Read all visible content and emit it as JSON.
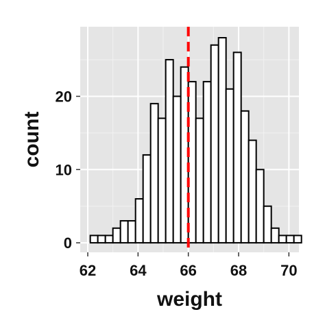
{
  "chart_data": {
    "type": "bar",
    "title": "",
    "xlabel": "weight",
    "ylabel": "count",
    "xlim": [
      61.7,
      70.4
    ],
    "ylim": [
      -1.3,
      29.5
    ],
    "x_ticks": [
      62,
      64,
      66,
      68,
      70
    ],
    "y_ticks": [
      0,
      10,
      20
    ],
    "grid": true,
    "legend": "none",
    "bin_width": 0.3,
    "bin_start": 61.8,
    "counts": [
      0,
      1,
      1,
      1,
      2,
      3,
      3,
      6,
      12,
      19,
      17,
      25,
      20,
      24,
      22,
      17,
      22,
      27,
      28,
      21,
      26,
      18,
      14,
      10,
      5,
      2,
      1,
      1,
      1,
      0
    ],
    "vline": {
      "x": 66,
      "color": "#ff0000",
      "style": "dashed"
    },
    "colors": {
      "panel": "#e5e5e5",
      "grid_major": "#ffffff",
      "grid_minor": "#f2f2f2",
      "bar_fill": "#ffffff",
      "bar_stroke": "#000000"
    }
  }
}
